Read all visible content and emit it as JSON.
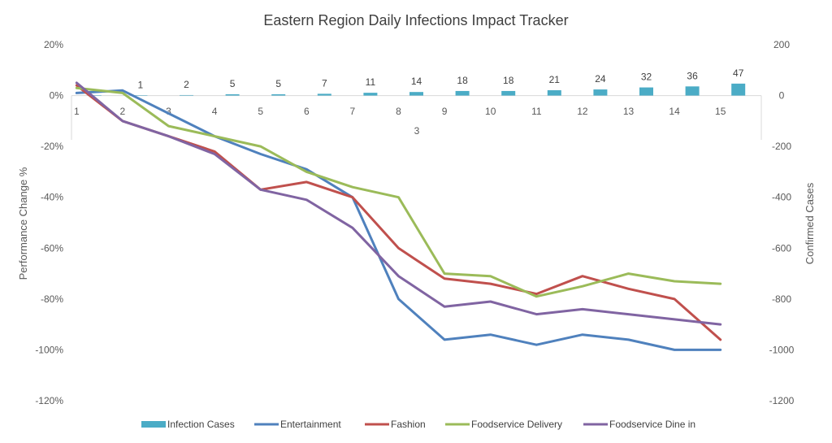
{
  "chart_data": {
    "type": "bar+line",
    "title": "Eastern Region Daily Infections Impact Tracker",
    "ylabel_left": "Performance Change %",
    "ylabel_right": "Confirmed Cases",
    "xlabel": "3",
    "categories": [
      "1",
      "2",
      "3",
      "4",
      "5",
      "6",
      "7",
      "8",
      "9",
      "10",
      "11",
      "12",
      "13",
      "14",
      "15"
    ],
    "ylim_left": [
      -120,
      20
    ],
    "ylim_right": [
      -1200,
      200
    ],
    "yticks_left": [
      "20%",
      "0%",
      "-20%",
      "-40%",
      "-60%",
      "-80%",
      "-100%",
      "-120%"
    ],
    "yticks_right": [
      "200",
      "0",
      "-200",
      "-400",
      "-600",
      "-800",
      "-1000",
      "-1200"
    ],
    "bars": {
      "name": "Infection Cases",
      "axis": "right",
      "color": "#4BACC6",
      "values": [
        1,
        1,
        2,
        5,
        5,
        7,
        11,
        14,
        18,
        18,
        21,
        24,
        32,
        36,
        47
      ],
      "labels": [
        "",
        "1",
        "2",
        "5",
        "5",
        "7",
        "11",
        "14",
        "18",
        "18",
        "21",
        "24",
        "32",
        "36",
        "47"
      ]
    },
    "series": [
      {
        "name": "Entertainment",
        "color": "#4F81BD",
        "values": [
          1,
          2,
          -7,
          -16,
          -23,
          -29,
          -40,
          -80,
          -96,
          -94,
          -98,
          -94,
          -96,
          -100,
          -100
        ]
      },
      {
        "name": "Fashion",
        "color": "#C0504D",
        "values": [
          4,
          -10,
          -16,
          -22,
          -37,
          -34,
          -40,
          -60,
          -72,
          -74,
          -78,
          -71,
          -76,
          -80,
          -96
        ]
      },
      {
        "name": "Foodservice Delivery",
        "color": "#9BBB59",
        "values": [
          3,
          1,
          -12,
          -16,
          -20,
          -30,
          -36,
          -40,
          -70,
          -71,
          -79,
          -75,
          -70,
          -73,
          -74
        ]
      },
      {
        "name": "Foodservice Dine in",
        "color": "#8064A2",
        "values": [
          5,
          -10,
          -16,
          -23,
          -37,
          -41,
          -52,
          -71,
          -83,
          -81,
          -86,
          -84,
          -86,
          -88,
          -90
        ]
      }
    ],
    "legend": [
      "Infection Cases",
      "Entertainment",
      "Fashion",
      "Foodservice Delivery",
      "Foodservice Dine in"
    ],
    "legend_position": "bottom"
  }
}
